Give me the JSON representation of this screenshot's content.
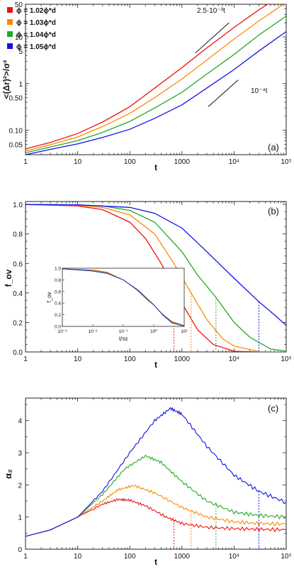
{
  "chart_data": [
    {
      "panel": "(a)",
      "type": "line",
      "xlabel": "t",
      "ylabel": "<(Δr)²>/σ²",
      "xscale": "log",
      "yscale": "log",
      "xlim": [
        1,
        100000
      ],
      "ylim": [
        0.03,
        50
      ],
      "xticks": [
        "1",
        "10",
        "100",
        "1000",
        "10⁴",
        "10⁵"
      ],
      "yticks": [
        "0.05",
        "0.10",
        "0.50",
        "1",
        "5",
        "10",
        "50"
      ],
      "legend_position": "top-left",
      "series": [
        {
          "name": "ϕ = 1.02ϕ*d",
          "color": "#ee1111",
          "x": [
            1,
            3,
            10,
            30,
            100,
            300,
            1000,
            3000,
            10000,
            30000,
            100000
          ],
          "y": [
            0.04,
            0.055,
            0.085,
            0.15,
            0.32,
            0.8,
            2.2,
            5.8,
            16,
            38,
            90
          ]
        },
        {
          "name": "ϕ = 1.03ϕ*d",
          "color": "#ff8800",
          "x": [
            1,
            3,
            10,
            30,
            100,
            300,
            1000,
            3000,
            10000,
            30000,
            100000
          ],
          "y": [
            0.036,
            0.049,
            0.072,
            0.12,
            0.23,
            0.5,
            1.25,
            3.2,
            9,
            22,
            55
          ]
        },
        {
          "name": "ϕ = 1.04ϕ*d",
          "color": "#22aa22",
          "x": [
            1,
            3,
            10,
            30,
            100,
            300,
            1000,
            3000,
            10000,
            30000,
            100000
          ],
          "y": [
            0.033,
            0.044,
            0.06,
            0.09,
            0.155,
            0.3,
            0.65,
            1.6,
            4.2,
            11,
            28
          ]
        },
        {
          "name": "ϕ = 1.05ϕ*d",
          "color": "#1111ee",
          "x": [
            1,
            3,
            10,
            30,
            100,
            300,
            1000,
            3000,
            10000,
            30000,
            100000
          ],
          "y": [
            0.03,
            0.039,
            0.051,
            0.07,
            0.105,
            0.18,
            0.35,
            0.8,
            2,
            5,
            13
          ]
        }
      ],
      "reference_lines": [
        {
          "label": "2.5·10⁻³t",
          "x": [
            1800,
            8000
          ],
          "y": [
            4.5,
            20
          ]
        },
        {
          "label": "10⁻⁴t",
          "x": [
            3200,
            12000
          ],
          "y": [
            0.32,
            1.2
          ]
        }
      ]
    },
    {
      "panel": "(b)",
      "type": "line",
      "xlabel": "t",
      "ylabel": "f_ov",
      "xscale": "log",
      "xlim": [
        1,
        100000
      ],
      "ylim": [
        0,
        1.02
      ],
      "xticks": [
        "1",
        "10",
        "100",
        "1000",
        "10⁴",
        "10⁵"
      ],
      "yticks": [
        "0.0",
        "0.2",
        "0.4",
        "0.6",
        "0.8",
        "1.0"
      ],
      "series": [
        {
          "name": "ϕ = 1.02ϕ*d",
          "color": "#ee1111",
          "x": [
            1,
            10,
            30,
            100,
            200,
            400,
            700,
            1000,
            2000,
            4000,
            10000,
            30000,
            100000
          ],
          "y": [
            1.0,
            0.99,
            0.965,
            0.88,
            0.77,
            0.6,
            0.43,
            0.33,
            0.15,
            0.05,
            0.005,
            0.0,
            0.0
          ]
        },
        {
          "name": "ϕ = 1.03ϕ*d",
          "color": "#ff8800",
          "x": [
            1,
            10,
            30,
            100,
            300,
            700,
            1500,
            3000,
            6000,
            10000,
            30000,
            100000
          ],
          "y": [
            1.0,
            0.995,
            0.98,
            0.93,
            0.8,
            0.6,
            0.4,
            0.22,
            0.09,
            0.04,
            0.003,
            0.0
          ]
        },
        {
          "name": "ϕ = 1.04ϕ*d",
          "color": "#22aa22",
          "x": [
            1,
            10,
            30,
            100,
            300,
            1000,
            2000,
            4500,
            10000,
            20000,
            50000,
            100000
          ],
          "y": [
            1.0,
            0.997,
            0.99,
            0.96,
            0.88,
            0.68,
            0.52,
            0.37,
            0.2,
            0.1,
            0.02,
            0.005
          ]
        },
        {
          "name": "ϕ = 1.05ϕ*d",
          "color": "#1111ee",
          "x": [
            1,
            10,
            100,
            300,
            1000,
            3000,
            10000,
            30000,
            60000,
            100000
          ],
          "y": [
            1.0,
            0.998,
            0.98,
            0.94,
            0.84,
            0.68,
            0.5,
            0.34,
            0.25,
            0.18
          ]
        }
      ],
      "markers_x": [
        700,
        1500,
        4500,
        30000
      ],
      "inset": {
        "xlabel": "t/τα",
        "ylabel": "f_ov",
        "xlim": [
          0.001,
          10
        ],
        "ylim": [
          0,
          1
        ],
        "xticks": [
          "10⁻³",
          "10⁻²",
          "10⁻¹",
          "10⁰",
          "10¹"
        ],
        "yticks": [
          "0.0",
          "0.2",
          "0.4",
          "0.6",
          "0.8",
          "1.0"
        ],
        "curve": {
          "x": [
            0.001,
            0.01,
            0.03,
            0.1,
            0.3,
            0.6,
            1,
            2,
            4,
            10
          ],
          "y": [
            0.99,
            0.96,
            0.92,
            0.8,
            0.62,
            0.47,
            0.37,
            0.2,
            0.07,
            0.01
          ]
        }
      }
    },
    {
      "panel": "(c)",
      "type": "line",
      "xlabel": "t",
      "ylabel": "α₂",
      "xscale": "log",
      "xlim": [
        1,
        100000
      ],
      "ylim": [
        0,
        4.7
      ],
      "xticks": [
        "1",
        "10",
        "100",
        "1000",
        "10⁴",
        "10⁵"
      ],
      "yticks": [
        "0",
        "1",
        "2",
        "3",
        "4"
      ],
      "series": [
        {
          "name": "ϕ = 1.02ϕ*d",
          "color": "#ee1111",
          "x": [
            1,
            3,
            10,
            30,
            60,
            100,
            200,
            500,
            1000,
            3000,
            10000,
            30000,
            100000
          ],
          "y": [
            0.4,
            0.6,
            1.0,
            1.4,
            1.55,
            1.52,
            1.35,
            1.0,
            0.8,
            0.68,
            0.64,
            0.62,
            0.6
          ]
        },
        {
          "name": "ϕ = 1.03ϕ*d",
          "color": "#ff8800",
          "x": [
            1,
            3,
            10,
            30,
            60,
            120,
            300,
            1000,
            3000,
            10000,
            30000,
            100000
          ],
          "y": [
            0.4,
            0.6,
            1.0,
            1.5,
            1.85,
            1.98,
            1.75,
            1.3,
            1.0,
            0.85,
            0.8,
            0.78
          ]
        },
        {
          "name": "ϕ = 1.04ϕ*d",
          "color": "#22aa22",
          "x": [
            1,
            3,
            10,
            30,
            80,
            200,
            400,
            1000,
            3000,
            10000,
            30000,
            100000
          ],
          "y": [
            0.4,
            0.6,
            1.0,
            1.7,
            2.5,
            2.9,
            2.7,
            2.1,
            1.5,
            1.15,
            1.05,
            1.0
          ]
        },
        {
          "name": "ϕ = 1.05ϕ*d",
          "color": "#1111ee",
          "x": [
            1,
            3,
            10,
            30,
            100,
            300,
            600,
            1000,
            3000,
            10000,
            30000,
            100000
          ],
          "y": [
            0.4,
            0.6,
            1.0,
            1.8,
            3.0,
            4.0,
            4.38,
            4.2,
            3.2,
            2.3,
            1.8,
            1.45
          ]
        }
      ],
      "markers_x": [
        700,
        1500,
        4500,
        30000
      ]
    }
  ]
}
